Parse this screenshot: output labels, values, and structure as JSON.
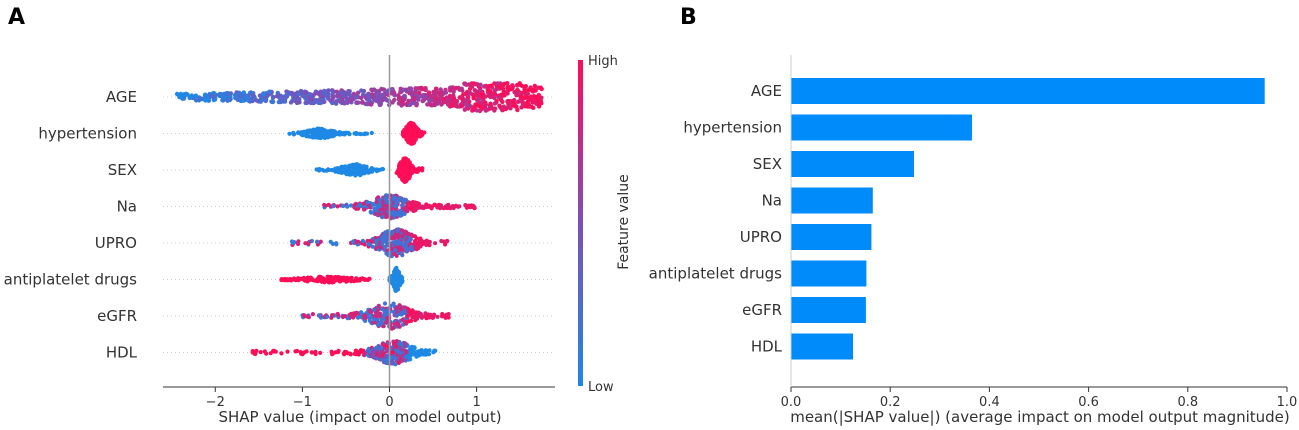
{
  "colors": {
    "low": "#1e88e5",
    "high": "#ff0d57",
    "bar": "#008bfb",
    "axis": "#333333",
    "center": "#999999",
    "grid": "#cccccc"
  },
  "chart_data": [
    {
      "panel": "A",
      "type": "scatter",
      "subtype": "shap-beeswarm",
      "xlabel": "SHAP value (impact on model output)",
      "xlim": [
        -2.6,
        1.9
      ],
      "xticks": [
        -2,
        -1,
        0,
        1
      ],
      "xtick_labels": [
        "−2",
        "−1",
        "0",
        "1"
      ],
      "features": [
        "AGE",
        "hypertension",
        "SEX",
        "Na",
        "UPRO",
        "antiplatelet drugs",
        "eGFR",
        "HDL"
      ],
      "colorbar": {
        "title": "Feature value",
        "high_label": "High",
        "low_label": "Low"
      },
      "distributions": [
        {
          "feature": "AGE",
          "min": -2.45,
          "max": 1.75,
          "bulk": [
            0.85,
            1.45
          ],
          "note": "low values negative, high values positive"
        },
        {
          "feature": "hypertension",
          "clusters": [
            {
              "level": "low",
              "range": [
                -1.15,
                -0.2
              ],
              "peak": -0.8
            },
            {
              "level": "high",
              "range": [
                0.15,
                0.4
              ],
              "peak": 0.25
            }
          ]
        },
        {
          "feature": "SEX",
          "clusters": [
            {
              "level": "low",
              "range": [
                -0.85,
                -0.05
              ],
              "peak": -0.4
            },
            {
              "level": "high",
              "range": [
                0.08,
                0.38
              ],
              "peak": 0.18
            }
          ]
        },
        {
          "feature": "Na",
          "min": -0.75,
          "max": 0.98,
          "peak": 0.0
        },
        {
          "feature": "UPRO",
          "min": -1.12,
          "max": 0.68,
          "peak": 0.08
        },
        {
          "feature": "antiplatelet drugs",
          "clusters": [
            {
              "level": "high",
              "range": [
                -1.25,
                -0.2
              ],
              "peak": -0.7
            },
            {
              "level": "low",
              "range": [
                0.0,
                0.15
              ],
              "peak": 0.08
            }
          ]
        },
        {
          "feature": "eGFR",
          "min": -1.0,
          "max": 0.72,
          "peak": 0.0
        },
        {
          "feature": "HDL",
          "min": -1.6,
          "max": 0.55,
          "peak": 0.05
        }
      ]
    },
    {
      "panel": "B",
      "type": "bar",
      "orientation": "horizontal",
      "xlabel": "mean(|SHAP value|) (average impact on model output magnitude)",
      "xlim": [
        0,
        1.0
      ],
      "xticks": [
        0.0,
        0.2,
        0.4,
        0.6,
        0.8,
        1.0
      ],
      "xtick_labels": [
        "0.0",
        "0.2",
        "0.4",
        "0.6",
        "0.8",
        "1.0"
      ],
      "categories": [
        "AGE",
        "hypertension",
        "SEX",
        "Na",
        "UPRO",
        "antiplatelet drugs",
        "eGFR",
        "HDL"
      ],
      "values": [
        0.955,
        0.365,
        0.248,
        0.165,
        0.162,
        0.152,
        0.151,
        0.125
      ]
    }
  ]
}
